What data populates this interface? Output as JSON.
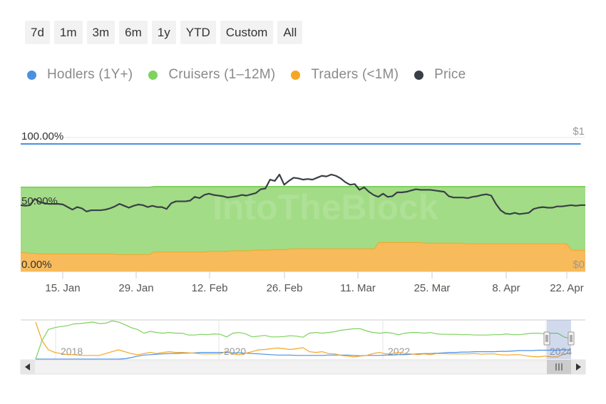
{
  "range_selector": {
    "buttons": [
      "7d",
      "1m",
      "3m",
      "6m",
      "1y",
      "YTD",
      "Custom",
      "All"
    ]
  },
  "legend": {
    "items": [
      {
        "label": "Hodlers (1Y+)",
        "color": "#4a90e2"
      },
      {
        "label": "Cruisers (1–12M)",
        "color": "#7ed25e"
      },
      {
        "label": "Traders (<1M)",
        "color": "#f5a623"
      },
      {
        "label": "Price",
        "color": "#3a3f47"
      }
    ]
  },
  "watermark": "IntoTheBlock",
  "chart_data": {
    "type": "area",
    "stacking": "percent",
    "x_tick_labels": [
      "15. Jan",
      "29. Jan",
      "12. Feb",
      "26. Feb",
      "11. Mar",
      "25. Mar",
      "8. Apr",
      "22. Apr"
    ],
    "y_axis_left_labels": [
      "100.00%",
      "50.00%",
      "0.00%"
    ],
    "y_axis_right_labels": [
      "$1",
      "$0"
    ],
    "ylim": [
      0,
      100
    ],
    "series": [
      {
        "name": "Traders (<1M)",
        "color": "#f5a623",
        "values": [
          15,
          15,
          14.5,
          14.5,
          14,
          14,
          14,
          14,
          14,
          14,
          14,
          14,
          14,
          14,
          14,
          14,
          14,
          14,
          14,
          14,
          14,
          13.5,
          13.5,
          13.5,
          13.5,
          13.5,
          13.5,
          13.5,
          13.5,
          15.5,
          15.5,
          15.5,
          15.5,
          15.5,
          15.5,
          15.5,
          15.5,
          15.5,
          15.5,
          15.5,
          15.5,
          16,
          16,
          16,
          16,
          16,
          16.5,
          16.5,
          16.5,
          16.5,
          16.5,
          17,
          17,
          17,
          17,
          17.5,
          17.5,
          17.5,
          17.5,
          18,
          18,
          18,
          18,
          18,
          18,
          18,
          18,
          18,
          18,
          18,
          18,
          18,
          18,
          18,
          18,
          18,
          18,
          18,
          23,
          23,
          23,
          23,
          23,
          23,
          23,
          23,
          23,
          23,
          22.5,
          22.5,
          22.5,
          22.5,
          22.5,
          22.5,
          22.5,
          22.5,
          22.5,
          22,
          22,
          22,
          22,
          22,
          22,
          22,
          22,
          22,
          22,
          22,
          22,
          22,
          22,
          22,
          22,
          22,
          22,
          22,
          22,
          22,
          22,
          22,
          17,
          17,
          17,
          16.5
        ]
      },
      {
        "name": "Cruisers (1–12M)",
        "color": "#7ed25e",
        "values": [
          51,
          51,
          51.5,
          51.5,
          52,
          52,
          52,
          52,
          52,
          52,
          52,
          52,
          52,
          52,
          52,
          52,
          52,
          52,
          52,
          52,
          52,
          52.5,
          52.5,
          52.5,
          52.5,
          52.5,
          52.5,
          52.5,
          52.5,
          51,
          51,
          51,
          51,
          51,
          51,
          51,
          51,
          51,
          51,
          51,
          51,
          50.5,
          50.5,
          50.5,
          50.5,
          50.5,
          50,
          50,
          50,
          50,
          50,
          49.5,
          49.5,
          49.5,
          49.5,
          49,
          49,
          49,
          49,
          48.5,
          48.5,
          48.5,
          48.5,
          48.5,
          48.5,
          48.5,
          48.5,
          48.5,
          48.5,
          48.5,
          48.5,
          48.5,
          48.5,
          48.5,
          48.5,
          48.5,
          48.5,
          48.5,
          43.5,
          43.5,
          43.5,
          43.5,
          43.5,
          43.5,
          43.5,
          43.5,
          43.5,
          43.5,
          44,
          44,
          44,
          44,
          44,
          44,
          44,
          44,
          44,
          44.5,
          44.5,
          44.5,
          44.5,
          44.5,
          44.5,
          44.5,
          44.5,
          44.5,
          44.5,
          44.5,
          44.5,
          44.5,
          44.5,
          44.5,
          44.5,
          44.5,
          44.5,
          44.5,
          44.5,
          44.5,
          44.5,
          44.5,
          49.5,
          49.5,
          49.5,
          50
        ]
      },
      {
        "name": "Hodlers (1Y+)",
        "color": "#4a90e2",
        "values": [
          34,
          34,
          34,
          34,
          34,
          34,
          34,
          34,
          34,
          34,
          34,
          34,
          34,
          34,
          34,
          34,
          34,
          34,
          34,
          34,
          34,
          34,
          34,
          34,
          34,
          34,
          34,
          34,
          34,
          33.5,
          33.5,
          33.5,
          33.5,
          33.5,
          33.5,
          33.5,
          33.5,
          33.5,
          33.5,
          33.5,
          33.5,
          33.5,
          33.5,
          33.5,
          33.5,
          33.5,
          33.5,
          33.5,
          33.5,
          33.5,
          33.5,
          33.5,
          33.5,
          33.5,
          33.5,
          33.5,
          33.5,
          33.5,
          33.5,
          33.5,
          33.5,
          33.5,
          33.5,
          33.5,
          33.5,
          33.5,
          33.5,
          33.5,
          33.5,
          33.5,
          33.5,
          33.5,
          33.5,
          33.5,
          33.5,
          33.5,
          33.5,
          33.5,
          33.5,
          33.5,
          33.5,
          33.5,
          33.5,
          33.5,
          33.5,
          33.5,
          33.5,
          33.5,
          33.5,
          33.5,
          33.5,
          33.5,
          33.5,
          33.5,
          33.5,
          33.5,
          33.5,
          33.5,
          33.5,
          33.5,
          33.5,
          33.5,
          33.5,
          33.5,
          33.5,
          33.5,
          33.5,
          33.5,
          33.5,
          33.5,
          33.5,
          33.5,
          33.5,
          33.5,
          33.5,
          33.5,
          33.5,
          33.5,
          33.5,
          33.5,
          33.5,
          33.5,
          33.5
        ]
      },
      {
        "name": "Price",
        "color": "#3a3f47",
        "axis": "right",
        "ylim": [
          0,
          1
        ],
        "values": [
          0.52,
          0.515,
          0.52,
          0.57,
          0.545,
          0.535,
          0.53,
          0.53,
          0.53,
          0.525,
          0.505,
          0.485,
          0.505,
          0.495,
          0.47,
          0.48,
          0.48,
          0.48,
          0.485,
          0.495,
          0.51,
          0.53,
          0.515,
          0.5,
          0.515,
          0.525,
          0.52,
          0.505,
          0.515,
          0.505,
          0.505,
          0.49,
          0.535,
          0.55,
          0.55,
          0.55,
          0.555,
          0.585,
          0.575,
          0.6,
          0.61,
          0.6,
          0.595,
          0.59,
          0.58,
          0.585,
          0.59,
          0.6,
          0.595,
          0.605,
          0.615,
          0.645,
          0.65,
          0.72,
          0.71,
          0.76,
          0.68,
          0.71,
          0.735,
          0.73,
          0.72,
          0.725,
          0.72,
          0.735,
          0.75,
          0.745,
          0.76,
          0.75,
          0.73,
          0.7,
          0.68,
          0.685,
          0.64,
          0.66,
          0.625,
          0.6,
          0.585,
          0.61,
          0.585,
          0.59,
          0.62,
          0.62,
          0.625,
          0.635,
          0.645,
          0.64,
          0.64,
          0.64,
          0.635,
          0.63,
          0.625,
          0.59,
          0.58,
          0.58,
          0.58,
          0.575,
          0.585,
          0.59,
          0.6,
          0.605,
          0.595,
          0.53,
          0.48,
          0.455,
          0.45,
          0.46,
          0.45,
          0.455,
          0.46,
          0.49,
          0.5,
          0.505,
          0.5,
          0.5,
          0.51,
          0.51,
          0.515,
          0.52,
          0.515,
          0.52,
          0.52
        ]
      }
    ]
  },
  "navigator": {
    "x_labels": [
      "2018",
      "2020",
      "2022",
      "2024"
    ],
    "series": [
      {
        "name": "Hodlers",
        "color": "#4a90e2",
        "values": [
          0,
          0,
          0,
          0,
          0,
          0,
          0,
          0,
          0,
          0,
          0,
          0,
          0,
          0,
          1,
          4,
          8,
          11,
          12,
          13,
          14,
          15,
          15,
          16,
          16,
          17,
          18,
          18,
          18,
          18,
          18,
          17,
          17,
          16,
          15,
          14,
          13,
          12,
          11,
          11,
          11,
          10,
          10,
          10,
          10,
          10,
          11,
          11,
          11,
          11,
          10,
          9,
          10,
          10,
          10,
          11,
          11,
          12,
          12,
          13,
          14,
          15,
          15,
          16,
          17,
          18,
          18,
          19,
          19,
          20,
          20,
          20,
          20,
          21,
          21,
          22,
          23,
          23,
          23,
          24,
          24,
          24,
          24,
          25,
          25
        ]
      },
      {
        "name": "Cruisers",
        "color": "#7ed25e",
        "values": [
          0,
          50,
          80,
          85,
          88,
          90,
          95,
          96,
          98,
          100,
          96,
          97,
          103,
          100,
          93,
          85,
          80,
          70,
          75,
          72,
          70,
          72,
          70,
          70,
          65,
          65,
          67,
          66,
          68,
          67,
          60,
          70,
          72,
          68,
          60,
          62,
          64,
          60,
          60,
          61,
          63,
          62,
          59,
          70,
          72,
          70,
          72,
          74,
          78,
          80,
          82,
          82,
          76,
          72,
          70,
          72,
          70,
          66,
          70,
          72,
          72,
          70,
          72,
          68,
          67,
          67,
          67,
          66,
          66,
          65,
          65,
          65,
          66,
          66,
          68,
          66,
          66,
          68,
          70,
          70,
          68,
          70,
          70,
          60,
          55
        ]
      },
      {
        "name": "Traders",
        "color": "#f5a623",
        "values": [
          100,
          50,
          25,
          18,
          15,
          12,
          12,
          10,
          10,
          10,
          10,
          15,
          20,
          25,
          20,
          15,
          12,
          15,
          18,
          15,
          18,
          20,
          18,
          18,
          17,
          16,
          14,
          14,
          14,
          14,
          22,
          14,
          12,
          16,
          20,
          25,
          26,
          28,
          30,
          28,
          26,
          28,
          31,
          20,
          18,
          20,
          15,
          14,
          10,
          8,
          6,
          8,
          10,
          15,
          18,
          14,
          15,
          18,
          15,
          14,
          12,
          14,
          12,
          15,
          15,
          14,
          14,
          14,
          14,
          15,
          13,
          14,
          14,
          12,
          11,
          12,
          12,
          9,
          7,
          6,
          8,
          6,
          6,
          14,
          15
        ]
      }
    ]
  }
}
